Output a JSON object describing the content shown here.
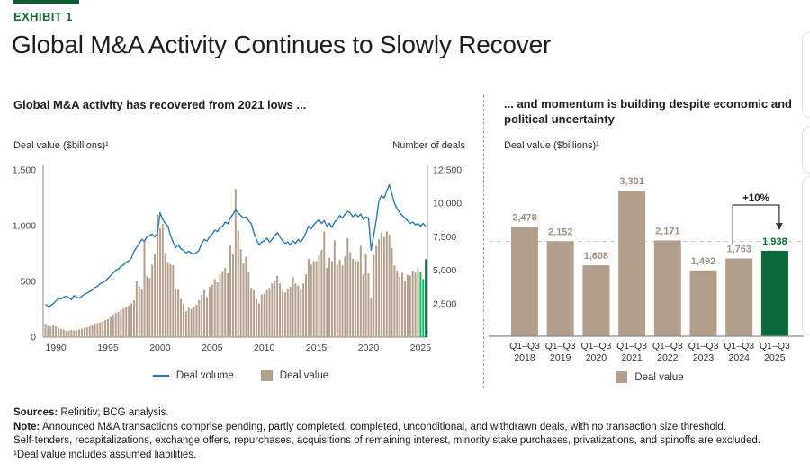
{
  "exhibit": {
    "label": "EXHIBIT 1",
    "title": "Global M&A Activity Continues to Slowly Recover"
  },
  "colors": {
    "accent_green_dark": "#0f5c38",
    "exhibit_green": "#15693a",
    "bar_tan": "#b3a08c",
    "line_blue": "#2679b4",
    "highlight_green_light": "#00bf63",
    "highlight_green_dark": "#0b6b3b",
    "bar_label_gray": "#a3927f",
    "axis_gray": "#8c8c8c",
    "refline_gray": "#cfcfcf"
  },
  "left_panel": {
    "subtitle": "Global M&A activity has recovered from 2021 lows ...",
    "y_left_label": "Deal value ($billions)¹",
    "y_right_label": "Number of deals",
    "legend": [
      {
        "label": "Deal volume",
        "type": "line"
      },
      {
        "label": "Deal value",
        "type": "square"
      }
    ]
  },
  "right_panel": {
    "subtitle": "... and momentum is building despite economic and political uncertainty",
    "y_label": "Deal value ($billions)¹",
    "legend": [
      {
        "label": "Deal value",
        "type": "square"
      }
    ]
  },
  "footer": {
    "sources_label": "Sources:",
    "sources_text": " Refinitiv; BCG analysis.",
    "note_label": "Note:",
    "note_text": " Announced M&A transactions comprise pending, partly completed, completed, unconditional, and withdrawn deals, with no transaction size threshold.",
    "note_text2": "Self-tenders, recapitalizations, exchange offers, repurchases, acquisitions of remaining interest, minority stake purchases, privatizations, and spinoffs are excluded.",
    "footnote": "¹Deal value includes assumed liabilities."
  },
  "chart_data": [
    {
      "type": "combo",
      "title": "Global M&A activity has recovered from 2021 lows ...",
      "x_unit": "quarter",
      "start_year": 1989,
      "x_ticks": [
        1990,
        1995,
        2000,
        2005,
        2010,
        2015,
        2020,
        2025
      ],
      "left_axis": {
        "label": "Deal value ($billions)",
        "max": 1500,
        "ticks": [
          {
            "v": 0,
            "label": "0"
          },
          {
            "v": 500,
            "label": "500"
          },
          {
            "v": 1000,
            "label": "1,000"
          },
          {
            "v": 1500,
            "label": "1,500"
          }
        ]
      },
      "right_axis": {
        "label": "Number of deals",
        "max": 12500,
        "ticks": [
          {
            "v": 2500,
            "label": "2,500"
          },
          {
            "v": 5000,
            "label": "5,000"
          },
          {
            "v": 7500,
            "label": "7,500"
          },
          {
            "v": 10000,
            "label": "10,000"
          },
          {
            "v": 12500,
            "label": "12,500"
          }
        ]
      },
      "series": [
        {
          "name": "Deal value",
          "type": "bar",
          "axis": "left",
          "color": "#b3a08c",
          "highlight": {
            "count": 3,
            "color": "#00bf63",
            "last_color": "#0b6b3b"
          },
          "values": [
            120,
            105,
            95,
            110,
            95,
            85,
            72,
            65,
            55,
            60,
            66,
            62,
            62,
            70,
            76,
            82,
            88,
            96,
            108,
            122,
            126,
            134,
            142,
            152,
            162,
            182,
            202,
            218,
            226,
            242,
            256,
            272,
            282,
            302,
            332,
            500,
            455,
            430,
            860,
            545,
            530,
            650,
            745,
            1100,
            975,
            1015,
            755,
            675,
            655,
            645,
            435,
            425,
            340,
            300,
            232,
            262,
            252,
            272,
            292,
            332,
            382,
            422,
            362,
            452,
            472,
            522,
            492,
            562,
            592,
            622,
            572,
            822,
            742,
            1330,
            955,
            788,
            662,
            722,
            582,
            442,
            422,
            342,
            302,
            382,
            392,
            422,
            442,
            482,
            502,
            552,
            482,
            422,
            402,
            432,
            452,
            542,
            482,
            462,
            422,
            482,
            562,
            702,
            652,
            682,
            682,
            732,
            782,
            948,
            622,
            712,
            682,
            868,
            652,
            692,
            642,
            722,
            888,
            762,
            702,
            682,
            682,
            818,
            562,
            748,
            572,
            352,
            738,
            818,
            878,
            938,
            898,
            948,
            918,
            798,
            642,
            598,
            542,
            578,
            502,
            558,
            552,
            598,
            578,
            618,
            582,
            522,
            698
          ]
        },
        {
          "name": "Deal volume",
          "type": "line",
          "axis": "right",
          "color": "#2679b4",
          "values": [
            2450,
            2300,
            2360,
            2500,
            2700,
            2900,
            2840,
            3000,
            3060,
            2950,
            2800,
            3100,
            3000,
            2900,
            3060,
            3200,
            3300,
            3400,
            3520,
            3700,
            3800,
            4000,
            4080,
            4200,
            4400,
            4600,
            4800,
            5000,
            5080,
            5300,
            5380,
            5600,
            5700,
            5900,
            6400,
            6700,
            7000,
            7300,
            7180,
            7500,
            7600,
            7700,
            7480,
            7800,
            9300,
            8800,
            8500,
            8300,
            7600,
            7100,
            6700,
            6900,
            6600,
            6500,
            6300,
            6420,
            6300,
            6200,
            6320,
            6500,
            7000,
            7300,
            7180,
            7500,
            7700,
            8000,
            7880,
            8200,
            8300,
            8600,
            8480,
            8900,
            9200,
            9500,
            9300,
            9100,
            8900,
            9000,
            8700,
            8500,
            7800,
            7300,
            6900,
            7100,
            7200,
            7400,
            7100,
            7300,
            7600,
            7800,
            7500,
            7200,
            7000,
            7120,
            6900,
            7200,
            7000,
            7300,
            7100,
            7400,
            7800,
            8300,
            8100,
            8400,
            8600,
            8800,
            8500,
            8700,
            8300,
            8500,
            8200,
            8600,
            8800,
            9100,
            8900,
            9200,
            9400,
            9300,
            9000,
            9200,
            9000,
            9200,
            8800,
            9000,
            8900,
            6500,
            7600,
            8800,
            10200,
            10600,
            10400,
            10900,
            11400,
            10700,
            10000,
            9600,
            9300,
            9100,
            8900,
            8700,
            8500,
            8600,
            8400,
            8500,
            8300,
            8500,
            8250
          ]
        }
      ]
    },
    {
      "type": "bar",
      "title": "... and momentum is building despite economic and political uncertainty",
      "ylabel": "Deal value ($billions)",
      "period_label": "Q1–Q3",
      "categories": [
        "2018",
        "2019",
        "2020",
        "2021",
        "2022",
        "2023",
        "2024",
        "2025"
      ],
      "values": [
        2478,
        2152,
        1608,
        3301,
        2171,
        1492,
        1763,
        1938
      ],
      "labels": [
        "2,478",
        "2,152",
        "1,608",
        "3,301",
        "2,171",
        "1,492",
        "1,763",
        "1,938"
      ],
      "highlight_index": 7,
      "refline": 2150,
      "annotation": {
        "text": "+10%",
        "from_index": 6,
        "to_index": 7
      },
      "ylim": [
        0,
        3500
      ]
    }
  ]
}
